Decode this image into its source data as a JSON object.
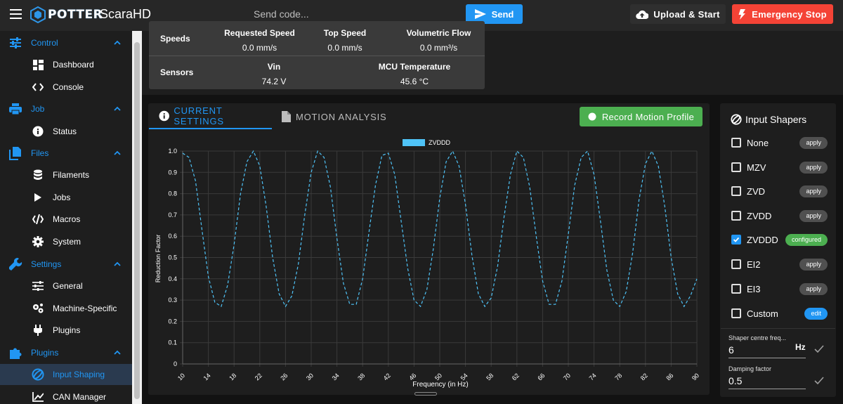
{
  "app": {
    "title": "ScaraHD",
    "logo_text": "POTTER"
  },
  "topbar": {
    "send_placeholder": "Send code...",
    "send_label": "Send",
    "upload_label": "Upload & Start",
    "estop_label": "Emergency Stop"
  },
  "sidebar": {
    "groups": [
      {
        "label": "Control",
        "icon": "tune-icon"
      },
      {
        "label": "Job",
        "icon": "printer-icon"
      },
      {
        "label": "Files",
        "icon": "file-icon"
      },
      {
        "label": "Settings",
        "icon": "wrench-icon"
      },
      {
        "label": "Plugins",
        "icon": "puzzle-icon"
      }
    ],
    "items": [
      {
        "label": "Dashboard",
        "icon": "dashboard-icon"
      },
      {
        "label": "Console",
        "icon": "code-icon"
      },
      {
        "label": "Status",
        "icon": "info-icon"
      },
      {
        "label": "Filaments",
        "icon": "database-icon"
      },
      {
        "label": "Jobs",
        "icon": "play-icon"
      },
      {
        "label": "Macros",
        "icon": "slash-code-icon"
      },
      {
        "label": "System",
        "icon": "gear-icon"
      },
      {
        "label": "General",
        "icon": "sliders-icon"
      },
      {
        "label": "Machine-Specific",
        "icon": "gears-icon"
      },
      {
        "label": "Plugins",
        "icon": "plug-icon"
      },
      {
        "label": "Input Shaping",
        "icon": "disc-icon"
      },
      {
        "label": "CAN Manager",
        "icon": "chart-line-icon"
      }
    ],
    "active": "Input Shaping"
  },
  "status": {
    "speeds_label": "Speeds",
    "sensors_label": "Sensors",
    "requested_speed": {
      "label": "Requested Speed",
      "value": "0.0 mm/s"
    },
    "top_speed": {
      "label": "Top Speed",
      "value": "0.0 mm/s"
    },
    "volumetric_flow": {
      "label": "Volumetric Flow",
      "value": "0.0 mm³/s"
    },
    "vin": {
      "label": "Vin",
      "value": "74.2 V"
    },
    "mcu_temp": {
      "label": "MCU Temperature",
      "value": "45.6 °C"
    }
  },
  "tabs": {
    "current": "CURRENT SETTINGS",
    "motion": "MOTION ANALYSIS",
    "record_label": "Record Motion Profile"
  },
  "shapers": {
    "title": "Input Shapers",
    "items": [
      {
        "name": "None",
        "checked": false,
        "action": "apply"
      },
      {
        "name": "MZV",
        "checked": false,
        "action": "apply"
      },
      {
        "name": "ZVD",
        "checked": false,
        "action": "apply"
      },
      {
        "name": "ZVDD",
        "checked": false,
        "action": "apply"
      },
      {
        "name": "ZVDDD",
        "checked": true,
        "action": "configured"
      },
      {
        "name": "EI2",
        "checked": false,
        "action": "apply"
      },
      {
        "name": "EI3",
        "checked": false,
        "action": "apply"
      },
      {
        "name": "Custom",
        "checked": false,
        "action": "edit"
      }
    ],
    "centre_freq_label": "Shaper centre freq...",
    "centre_freq_value": "6",
    "centre_freq_unit": "Hz",
    "damping_label": "Damping factor",
    "damping_value": "0.5"
  },
  "colors": {
    "accent": "#2196f3",
    "success": "#4caf50",
    "danger": "#f44336",
    "series": "#4fc3f7"
  },
  "chart_data": {
    "type": "line",
    "xlabel": "Frequency (in Hz)",
    "ylabel": "Reduction Factor",
    "xlim": [
      10,
      90
    ],
    "ylim": [
      0,
      1.0
    ],
    "x_ticks": [
      10,
      14,
      18,
      22,
      26,
      30,
      34,
      38,
      42,
      46,
      50,
      54,
      58,
      62,
      66,
      70,
      74,
      78,
      82,
      86,
      90
    ],
    "y_ticks": [
      0,
      0.1,
      0.2,
      0.3,
      0.4,
      0.5,
      0.6,
      0.7,
      0.8,
      0.9,
      1.0
    ],
    "grid": true,
    "legend_position": "top-center",
    "series": [
      {
        "name": "ZVDDD",
        "line_style": "dashed",
        "x": [
          10,
          11,
          12,
          13,
          14,
          15,
          16,
          17,
          18,
          19,
          20,
          21,
          22,
          23,
          24,
          25,
          26,
          27,
          28,
          29,
          30,
          31,
          32,
          33,
          34,
          35,
          36,
          37,
          38,
          39,
          40,
          41,
          42,
          43,
          44,
          45,
          46,
          47,
          48,
          49,
          50,
          51,
          52,
          53,
          54,
          55,
          56,
          57,
          58,
          59,
          60,
          61,
          62,
          63,
          64,
          65,
          66,
          67,
          68,
          69,
          70,
          71,
          72,
          73,
          74,
          75,
          76,
          77,
          78,
          79,
          80,
          81,
          82,
          83,
          84,
          85,
          86,
          87,
          88,
          89,
          90
        ],
        "y": [
          0.99,
          0.97,
          0.86,
          0.63,
          0.41,
          0.29,
          0.27,
          0.37,
          0.56,
          0.8,
          0.95,
          1.0,
          0.93,
          0.74,
          0.5,
          0.33,
          0.27,
          0.32,
          0.47,
          0.7,
          0.9,
          1.0,
          0.97,
          0.83,
          0.59,
          0.38,
          0.28,
          0.28,
          0.4,
          0.62,
          0.84,
          0.98,
          0.99,
          0.89,
          0.67,
          0.45,
          0.3,
          0.27,
          0.35,
          0.54,
          0.78,
          0.95,
          1.0,
          0.93,
          0.75,
          0.51,
          0.33,
          0.27,
          0.31,
          0.46,
          0.69,
          0.89,
          1.0,
          0.97,
          0.83,
          0.6,
          0.39,
          0.28,
          0.28,
          0.39,
          0.61,
          0.84,
          0.97,
          1.0,
          0.89,
          0.67,
          0.44,
          0.3,
          0.27,
          0.34,
          0.52,
          0.77,
          0.94,
          1.0,
          0.93,
          0.74,
          0.5,
          0.33,
          0.27,
          0.32,
          0.4
        ]
      }
    ]
  }
}
